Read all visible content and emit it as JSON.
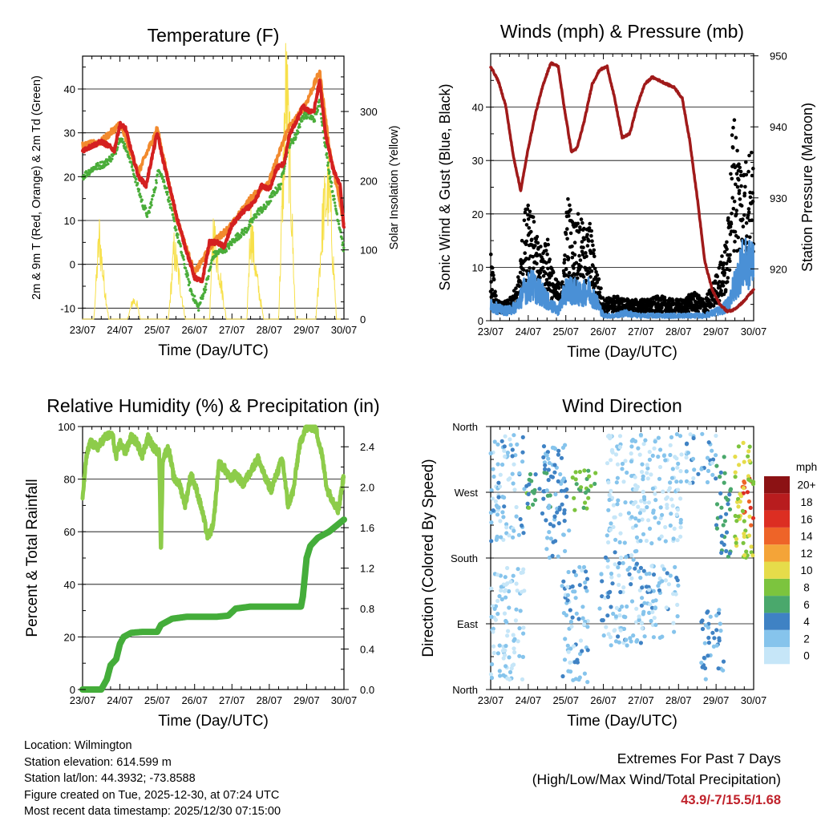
{
  "info": {
    "location": "Location: Wilmington",
    "elevation": "Station elevation: 614.599 m",
    "latlon": "Station lat/lon: 44.3932; -73.8588",
    "created": "Figure created on Tue, 2025-12-30, at 07:24 UTC",
    "timestamp": "Most recent data timestamp: 2025/12/30 07:15:00"
  },
  "extremes": {
    "title": "Extremes For Past 7 Days",
    "subtitle": "(High/Low/Max Wind/Total Precipitation)",
    "values": "43.9/-7/15.5/1.68"
  },
  "colors": {
    "temp_red": "#d42020",
    "temp_orange": "#f28a2e",
    "dewpoint_green": "#4aad3a",
    "solar_yellow": "#f7e04a",
    "pressure_maroon": "#a01a1a",
    "wind_blue": "#4a90d6",
    "gust_black": "#000000",
    "rh_green": "#8dcc4a",
    "precip_green": "#44ad3a"
  },
  "chart_data": [
    {
      "type": "line",
      "title": "Temperature (F)",
      "xlabel": "Time (Day/UTC)",
      "ylabel": "2m & 9m T (Red, Orange) & 2m Td (Green)",
      "y2label": "Solar Insolation (Yellow)",
      "x_ticks": [
        "23/07",
        "24/07",
        "25/07",
        "26/07",
        "27/07",
        "28/07",
        "29/07",
        "30/07"
      ],
      "xlim": [
        0,
        7
      ],
      "ylim": [
        -12.5,
        47.5
      ],
      "y_ticks": [
        -10,
        0,
        10,
        20,
        30,
        40
      ],
      "y2lim": [
        0,
        380
      ],
      "y2_ticks": [
        0,
        100,
        200,
        300
      ],
      "series": [
        {
          "name": "2m T",
          "color": "red",
          "x": [
            0,
            0.25,
            0.5,
            0.7,
            0.85,
            1.0,
            1.15,
            1.3,
            1.5,
            1.7,
            1.85,
            2.0,
            2.15,
            2.35,
            2.55,
            2.75,
            3.0,
            3.2,
            3.4,
            3.6,
            3.8,
            4.0,
            4.3,
            4.6,
            4.8,
            5.0,
            5.2,
            5.4,
            5.55,
            5.7,
            5.9,
            6.05,
            6.2,
            6.35,
            6.5,
            6.7,
            6.9,
            7.0
          ],
          "values": [
            26,
            27,
            28,
            27,
            26,
            32,
            31,
            26,
            20,
            18,
            24,
            30,
            24,
            17,
            10,
            4,
            -3,
            -4,
            5,
            5,
            4,
            9,
            12,
            14,
            18,
            17,
            22,
            23,
            30,
            32,
            36,
            35,
            35,
            42,
            30,
            22,
            18,
            8
          ]
        },
        {
          "name": "9m T",
          "color": "orange",
          "x": [
            0,
            0.5,
            1.0,
            1.5,
            2.0,
            2.5,
            3.0,
            3.5,
            4.0,
            4.5,
            5.0,
            5.5,
            5.7,
            6.0,
            6.35,
            6.6,
            7.0
          ],
          "values": [
            27,
            28,
            32,
            21,
            31,
            11,
            -2,
            5,
            9,
            15,
            19,
            31,
            33,
            37,
            44,
            27,
            9
          ]
        },
        {
          "name": "2m Td",
          "color": "green",
          "x": [
            0,
            0.3,
            0.6,
            0.85,
            1.0,
            1.2,
            1.4,
            1.6,
            1.75,
            1.9,
            2.05,
            2.25,
            2.5,
            2.7,
            2.9,
            3.1,
            3.3,
            3.5,
            3.7,
            3.9,
            4.1,
            4.4,
            4.7,
            4.9,
            5.1,
            5.3,
            5.5,
            5.7,
            5.9,
            6.05,
            6.2,
            6.35,
            6.55,
            6.75,
            6.9,
            7.0
          ],
          "values": [
            20,
            22,
            23,
            25,
            29,
            26,
            20,
            14,
            11,
            16,
            22,
            17,
            8,
            1,
            -6,
            -10,
            -5,
            2,
            3,
            4,
            6,
            8,
            12,
            13,
            16,
            18,
            27,
            29,
            34,
            34,
            33,
            37,
            24,
            14,
            8,
            3
          ]
        },
        {
          "name": "Solar Insolation",
          "color": "yellow",
          "axis": "y2",
          "x": [
            0,
            0.3,
            0.4,
            0.45,
            0.55,
            0.7,
            1.0,
            1.2,
            1.35,
            1.45,
            1.55,
            1.7,
            2.0,
            2.3,
            2.45,
            2.6,
            2.75,
            3.0,
            3.2,
            3.4,
            3.5,
            3.65,
            3.85,
            4.0,
            4.2,
            4.4,
            4.5,
            4.65,
            4.85,
            5.0,
            5.25,
            5.45,
            5.55,
            5.7,
            5.9,
            6.0,
            6.25,
            6.45,
            6.6,
            6.8,
            7.0
          ],
          "values": [
            0,
            0,
            90,
            130,
            70,
            0,
            0,
            0,
            30,
            25,
            0,
            0,
            0,
            0,
            110,
            60,
            0,
            0,
            0,
            0,
            140,
            80,
            0,
            0,
            0,
            0,
            150,
            70,
            0,
            0,
            0,
            370,
            250,
            0,
            0,
            0,
            0,
            170,
            210,
            0,
            0
          ]
        }
      ]
    },
    {
      "type": "line",
      "title": "Winds (mph) & Pressure (mb)",
      "xlabel": "Time (Day/UTC)",
      "ylabel": "Sonic Wind & Gust (Blue, Black)",
      "y2label": "Station Pressure (Maroon)",
      "x_ticks": [
        "23/07",
        "24/07",
        "25/07",
        "26/07",
        "27/07",
        "28/07",
        "29/07",
        "30/07"
      ],
      "xlim": [
        0,
        7
      ],
      "ylim": [
        0,
        50
      ],
      "y_ticks": [
        0,
        10,
        20,
        30,
        40
      ],
      "y2lim": [
        912.7,
        950.3
      ],
      "y2_ticks": [
        920,
        930,
        940,
        950
      ],
      "series": [
        {
          "name": "Station Pressure",
          "color": "maroon",
          "axis": "y2",
          "x": [
            0,
            0.2,
            0.4,
            0.6,
            0.8,
            1.0,
            1.2,
            1.4,
            1.6,
            1.8,
            1.95,
            2.15,
            2.3,
            2.5,
            2.7,
            2.9,
            3.1,
            3.3,
            3.5,
            3.7,
            3.9,
            4.1,
            4.3,
            4.5,
            4.7,
            4.9,
            5.1,
            5.3,
            5.5,
            5.7,
            5.9,
            6.1,
            6.3,
            6.45,
            6.6,
            6.75,
            6.9,
            7.0
          ],
          "values": [
            948.5,
            946.5,
            943,
            936,
            931,
            937,
            942,
            946,
            949,
            948.5,
            943,
            936.5,
            937,
            941,
            946,
            948,
            948.5,
            944,
            938.5,
            939,
            943,
            946,
            947,
            946.5,
            946,
            945.5,
            944,
            938,
            930,
            921,
            917,
            915,
            914,
            914.2,
            914.8,
            915.5,
            916.5,
            917
          ]
        },
        {
          "name": "Sonic Wind",
          "color": "blue",
          "x": [
            0,
            0.3,
            0.5,
            0.7,
            0.9,
            1.1,
            1.4,
            1.6,
            1.8,
            2.0,
            2.2,
            2.4,
            2.6,
            2.8,
            3.0,
            3.3,
            3.6,
            3.9,
            4.2,
            4.5,
            4.8,
            5.1,
            5.4,
            5.7,
            5.9,
            6.1,
            6.3,
            6.5,
            6.7,
            6.9,
            7.0
          ],
          "values": [
            3,
            2,
            2,
            3,
            6,
            7,
            5,
            3,
            2,
            6,
            6,
            5,
            6,
            4,
            1,
            1,
            1.5,
            1,
            1,
            1,
            1,
            1,
            1,
            1,
            1.5,
            2,
            3,
            7,
            11,
            11,
            12
          ]
        },
        {
          "name": "Gust",
          "color": "black",
          "marker": "dot",
          "x": [
            0,
            0.15,
            0.3,
            0.5,
            0.7,
            0.85,
            1.0,
            1.15,
            1.3,
            1.5,
            1.7,
            1.9,
            2.05,
            2.2,
            2.35,
            2.5,
            2.65,
            2.8,
            3.0,
            3.3,
            3.6,
            3.9,
            4.2,
            4.5,
            4.8,
            5.1,
            5.4,
            5.7,
            5.9,
            6.1,
            6.3,
            6.45,
            6.6,
            6.75,
            6.9,
            7.0
          ],
          "values": [
            10,
            3,
            2.5,
            3,
            5,
            12,
            20,
            14,
            10,
            12,
            6,
            5,
            18,
            14,
            15,
            13,
            14,
            8,
            3,
            3.5,
            3,
            3,
            3,
            3.5,
            3,
            3,
            4,
            3,
            5,
            8,
            12,
            30,
            25,
            22,
            25,
            22
          ]
        }
      ]
    },
    {
      "type": "line",
      "title": "Relative Humidity (%) & Precipitation (in)",
      "xlabel": "Time (Day/UTC)",
      "ylabel": "Percent & Total Rainfall",
      "x_ticks": [
        "23/07",
        "24/07",
        "25/07",
        "26/07",
        "27/07",
        "28/07",
        "29/07",
        "30/07"
      ],
      "xlim": [
        0,
        7
      ],
      "ylim": [
        0,
        100
      ],
      "y_ticks": [
        0,
        20,
        40,
        60,
        80,
        100
      ],
      "y2lim": [
        0,
        2.6
      ],
      "y2_ticks": [
        "0.0",
        "0.4",
        "0.8",
        "1.2",
        "1.6",
        "2.0",
        "2.4"
      ],
      "series": [
        {
          "name": "Relative Humidity",
          "color": "rh_green",
          "x": [
            0,
            0.1,
            0.2,
            0.4,
            0.6,
            0.8,
            0.9,
            1.0,
            1.15,
            1.3,
            1.45,
            1.6,
            1.75,
            1.9,
            2.05,
            2.1,
            2.15,
            2.3,
            2.45,
            2.6,
            2.75,
            2.9,
            3.05,
            3.2,
            3.35,
            3.5,
            3.65,
            3.8,
            3.95,
            4.1,
            4.3,
            4.5,
            4.7,
            4.9,
            5.05,
            5.2,
            5.35,
            5.5,
            5.65,
            5.8,
            5.95,
            6.1,
            6.25,
            6.4,
            6.55,
            6.7,
            6.85,
            7.0
          ],
          "values": [
            73,
            88,
            94,
            92,
            96,
            97,
            88,
            94,
            90,
            96,
            94,
            89,
            96,
            92,
            90,
            52,
            88,
            92,
            80,
            78,
            70,
            82,
            76,
            68,
            58,
            62,
            86,
            84,
            80,
            82,
            78,
            83,
            88,
            80,
            76,
            82,
            88,
            70,
            76,
            92,
            99,
            100,
            99,
            90,
            76,
            72,
            68,
            82
          ]
        },
        {
          "name": "Total Precipitation",
          "color": "precip_green",
          "axis": "y2",
          "x": [
            0,
            0.5,
            0.65,
            0.75,
            0.9,
            1.0,
            1.1,
            1.3,
            1.6,
            2.0,
            2.1,
            2.2,
            2.4,
            2.8,
            3.2,
            3.6,
            3.9,
            4.1,
            4.5,
            5.0,
            5.5,
            5.85,
            5.9,
            6.0,
            6.1,
            6.3,
            6.6,
            6.8,
            7.0
          ],
          "values": [
            0,
            0,
            0.1,
            0.24,
            0.3,
            0.45,
            0.52,
            0.56,
            0.57,
            0.57,
            0.64,
            0.66,
            0.7,
            0.72,
            0.72,
            0.72,
            0.73,
            0.8,
            0.82,
            0.82,
            0.82,
            0.82,
            0.92,
            1.3,
            1.42,
            1.5,
            1.56,
            1.62,
            1.68
          ]
        }
      ]
    },
    {
      "type": "scatter",
      "title": "Wind Direction",
      "xlabel": "Time (Day/UTC)",
      "ylabel": "Direction (Colored By Speed)",
      "x_ticks": [
        "23/07",
        "24/07",
        "25/07",
        "26/07",
        "27/07",
        "28/07",
        "29/07",
        "30/07"
      ],
      "y_labels": [
        "North",
        "East",
        "South",
        "West",
        "North"
      ],
      "xlim": [
        0,
        7
      ],
      "ylim": [
        0,
        360
      ],
      "colorbar": {
        "title": "mph",
        "labels": [
          "0",
          "2",
          "4",
          "6",
          "8",
          "10",
          "12",
          "14",
          "16",
          "18",
          "20+"
        ],
        "colors": [
          "#c6e6f8",
          "#86c4ec",
          "#3f82c4",
          "#4aa86c",
          "#7cc43e",
          "#e6dc4a",
          "#f4a438",
          "#ee6428",
          "#dc2e22",
          "#b81c1e",
          "#8c1214"
        ]
      },
      "clusters": [
        {
          "x_range": [
            0.0,
            0.9
          ],
          "dir_range": [
            200,
            350
          ],
          "speed": 2
        },
        {
          "x_range": [
            0.0,
            0.9
          ],
          "dir_range": [
            10,
            170
          ],
          "speed": 1
        },
        {
          "x_range": [
            0.9,
            1.6
          ],
          "dir_range": [
            240,
            300
          ],
          "speed": 6
        },
        {
          "x_range": [
            1.4,
            2.1
          ],
          "dir_range": [
            180,
            340
          ],
          "speed": 3
        },
        {
          "x_range": [
            2.1,
            2.8
          ],
          "dir_range": [
            245,
            300
          ],
          "speed": 7
        },
        {
          "x_range": [
            1.9,
            2.6
          ],
          "dir_range": [
            10,
            170
          ],
          "speed": 2
        },
        {
          "x_range": [
            2.9,
            4.0
          ],
          "dir_range": [
            60,
            190
          ],
          "speed": 2
        },
        {
          "x_range": [
            3.1,
            5.1
          ],
          "dir_range": [
            200,
            350
          ],
          "speed": 1
        },
        {
          "x_range": [
            3.9,
            5.0
          ],
          "dir_range": [
            70,
            170
          ],
          "speed": 2
        },
        {
          "x_range": [
            5.2,
            6.0
          ],
          "dir_range": [
            280,
            355
          ],
          "speed": 2
        },
        {
          "x_range": [
            5.6,
            6.2
          ],
          "dir_range": [
            10,
            110
          ],
          "speed": 3
        },
        {
          "x_range": [
            6.0,
            6.4
          ],
          "dir_range": [
            180,
            320
          ],
          "speed": 5
        },
        {
          "x_range": [
            6.7,
            7.0
          ],
          "dir_range": [
            220,
            300
          ],
          "speed": 15
        },
        {
          "x_range": [
            6.5,
            7.0
          ],
          "dir_range": [
            180,
            340
          ],
          "speed": 9
        }
      ]
    }
  ]
}
